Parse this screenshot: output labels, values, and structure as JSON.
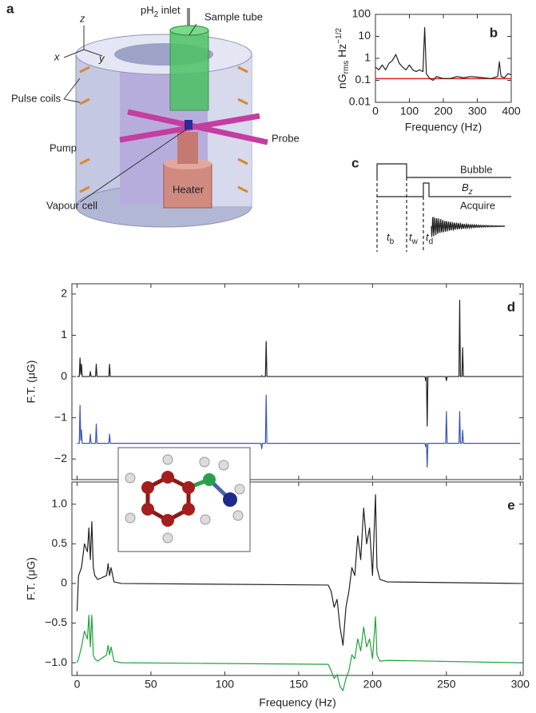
{
  "diagram": {
    "panel_label": "a",
    "axis_z": "z",
    "axis_x": "x",
    "axis_y": "y",
    "inlet": {
      "main": "pH",
      "sub": "2",
      "rest": " inlet"
    },
    "sample_tube": "Sample tube",
    "pulse_coils": "Pulse coils",
    "pump": "Pump",
    "probe": "Probe",
    "heater": "Heater",
    "vapour_cell": "Vapour cell"
  },
  "timing": {
    "panel_label": "c",
    "bubble": "Bubble",
    "bz": {
      "main": "B",
      "sub": "z"
    },
    "acquire": "Acquire",
    "tb": {
      "main": "t",
      "sub": "b"
    },
    "tw": {
      "main": "t",
      "sub": "w"
    },
    "td": {
      "main": "t",
      "sub": "d"
    }
  },
  "chart_data": [
    {
      "type": "line",
      "panel_label": "b",
      "xlabel": "Frequency (Hz)",
      "ylabel": {
        "main": "nG",
        "sub": "rms",
        "unit": " Hz",
        "sup": "−1/2"
      },
      "log_y": true,
      "xlim": [
        0,
        400
      ],
      "ylim": [
        0.01,
        100
      ],
      "xticks": [
        0,
        100,
        200,
        300,
        400
      ],
      "yticks": [
        0.01,
        0.1,
        1,
        10,
        100
      ],
      "x": [
        0,
        10,
        20,
        30,
        40,
        50,
        60,
        70,
        80,
        90,
        100,
        110,
        120,
        130,
        140,
        145,
        150,
        160,
        170,
        180,
        200,
        220,
        240,
        260,
        280,
        300,
        320,
        340,
        360,
        365,
        370,
        380,
        390,
        400
      ],
      "series": [
        {
          "color": "#222222",
          "values": [
            0.4,
            0.3,
            0.5,
            0.3,
            0.6,
            0.8,
            1.5,
            0.6,
            0.4,
            0.3,
            0.5,
            0.3,
            0.25,
            0.3,
            0.25,
            25,
            0.2,
            0.12,
            0.1,
            0.15,
            0.12,
            0.12,
            0.15,
            0.13,
            0.15,
            0.14,
            0.13,
            0.12,
            0.15,
            0.7,
            0.15,
            0.13,
            0.2,
            0.18
          ]
        }
      ],
      "reference_line": {
        "value": 0.12,
        "color": "#e0201b"
      }
    },
    {
      "type": "line",
      "panel_label": "d",
      "ylabel": "F.T. (μG)",
      "xlim": [
        -3.5,
        302
      ],
      "ylim": [
        -2.5,
        2.25
      ],
      "xticks": [
        0,
        50,
        100,
        150,
        200,
        250,
        300
      ],
      "yticks": [
        {
          "value": -2,
          "label": "−2"
        },
        {
          "value": -1,
          "label": "−1"
        },
        0,
        1,
        2
      ],
      "x": [
        0,
        1.5,
        2,
        2.5,
        3,
        3.5,
        8.5,
        9,
        9.5,
        12.5,
        13,
        13.5,
        21.5,
        22,
        22.5,
        124.5,
        125,
        125.5,
        127.5,
        128,
        128.5,
        235.5,
        236,
        236.5,
        237,
        237.5,
        249.5,
        250,
        250.5,
        258.5,
        259,
        259.5,
        260.5,
        261,
        261.5,
        300
      ],
      "series": [
        {
          "color": "#222222",
          "values": [
            0,
            0,
            0.45,
            0.05,
            0.3,
            0,
            0,
            0.12,
            0,
            0,
            0.3,
            0,
            0,
            0.3,
            0,
            0,
            0.02,
            0,
            0,
            0.85,
            0,
            0,
            -0.1,
            0,
            -1.2,
            0,
            0,
            -0.1,
            0,
            0,
            1.85,
            0,
            0,
            0.7,
            0,
            0
          ]
        },
        {
          "color": "#3a55b4",
          "values": [
            -1.62,
            -1.62,
            -0.7,
            -1.55,
            -1.3,
            -1.62,
            -1.62,
            -1.4,
            -1.62,
            -1.62,
            -1.15,
            -1.62,
            -1.62,
            -1.4,
            -1.62,
            -1.62,
            -1.75,
            -1.62,
            -1.62,
            -0.45,
            -1.62,
            -1.62,
            -1.7,
            -1.62,
            -2.2,
            -1.62,
            -1.62,
            -0.85,
            -1.62,
            -1.62,
            -0.85,
            -1.62,
            -1.62,
            -1.3,
            -1.62,
            -1.62
          ]
        }
      ]
    },
    {
      "type": "line",
      "panel_label": "e",
      "xlabel": "Frequency (Hz)",
      "ylabel": "F.T. (μG)",
      "xlim": [
        -3.5,
        302
      ],
      "ylim": [
        -1.16,
        1.28
      ],
      "xticks": [
        0,
        50,
        100,
        150,
        200,
        250,
        300
      ],
      "yticks": [
        {
          "value": -1,
          "label": "−1.0"
        },
        {
          "value": -0.5,
          "label": "−0.5"
        },
        0,
        0.5,
        {
          "value": 1,
          "label": "1.0"
        }
      ],
      "x": [
        0,
        1,
        3,
        5,
        7,
        8,
        9,
        10,
        11,
        12,
        14,
        20,
        21,
        22,
        23,
        25,
        30,
        170,
        172,
        174,
        176,
        178,
        180,
        182,
        184,
        186,
        188,
        190,
        192,
        194,
        196,
        198,
        200,
        202,
        203,
        205,
        210,
        300
      ],
      "series": [
        {
          "color": "#222222",
          "values": [
            -0.35,
            0.1,
            0.2,
            0.5,
            0.4,
            0.7,
            0.3,
            0.78,
            0.2,
            0.1,
            0.05,
            0.1,
            0.25,
            0.1,
            0.2,
            0.02,
            0,
            -0.02,
            -0.1,
            -0.3,
            -0.2,
            -0.55,
            -0.78,
            -0.3,
            -0.1,
            0.2,
            0.1,
            0.6,
            0.3,
            0.95,
            0.5,
            0.7,
            0.1,
            1.12,
            0.2,
            0.05,
            0.02,
            0
          ]
        },
        {
          "color": "#1fa33a",
          "values": [
            -1,
            -0.95,
            -0.8,
            -0.6,
            -0.7,
            -0.4,
            -0.8,
            -0.4,
            -0.9,
            -0.95,
            -0.98,
            -0.9,
            -0.78,
            -0.9,
            -0.8,
            -0.98,
            -1,
            -1.02,
            -1.1,
            -1.2,
            -1.15,
            -1.3,
            -1.35,
            -1.2,
            -1.1,
            -0.9,
            -0.95,
            -0.7,
            -0.85,
            -0.55,
            -0.8,
            -0.7,
            -0.95,
            -0.42,
            -0.9,
            -0.98,
            -0.97,
            -1
          ]
        }
      ]
    }
  ]
}
